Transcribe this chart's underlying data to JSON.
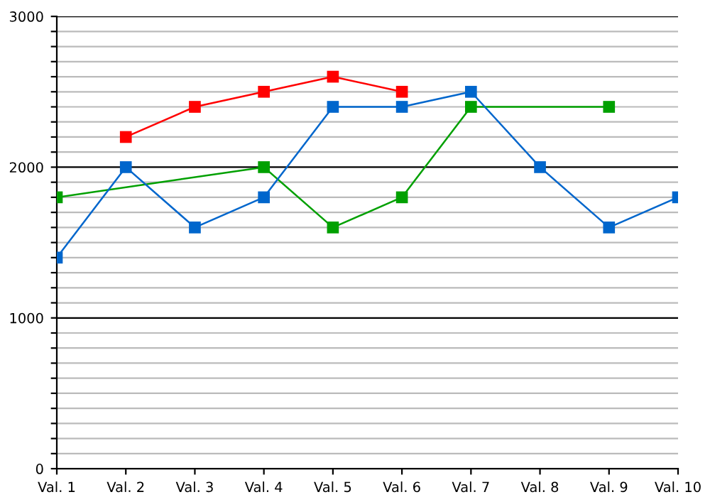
{
  "chart_data": {
    "type": "line",
    "categories": [
      "Val. 1",
      "Val. 2",
      "Val. 3",
      "Val. 4",
      "Val. 5",
      "Val. 6",
      "Val. 7",
      "Val. 8",
      "Val. 9",
      "Val. 10"
    ],
    "series": [
      {
        "color": "#ff0000",
        "values": [
          null,
          2200,
          2400,
          2500,
          2600,
          2500,
          null,
          null,
          null,
          null
        ]
      },
      {
        "color": "#00a000",
        "values": [
          1800,
          null,
          null,
          2000,
          1600,
          1800,
          2400,
          null,
          2400,
          null
        ]
      },
      {
        "color": "#0066cc",
        "values": [
          1400,
          2000,
          1600,
          1800,
          2400,
          2400,
          2500,
          2000,
          1600,
          1800
        ]
      }
    ],
    "ylim": [
      0,
      3000
    ],
    "yticks": [
      0,
      {
        "value": 100,
        "label": null
      },
      {
        "value": 200,
        "label": null
      },
      {
        "value": 300,
        "label": null
      },
      {
        "value": 400,
        "label": null
      },
      {
        "value": 500,
        "label": null
      },
      {
        "value": 600,
        "label": null
      },
      {
        "value": 700,
        "label": null
      },
      {
        "value": 800,
        "label": null
      },
      {
        "value": 900,
        "label": null
      },
      1000,
      {
        "value": 1100,
        "label": null
      },
      {
        "value": 1200,
        "label": null
      },
      {
        "value": 1300,
        "label": null
      },
      {
        "value": 1400,
        "label": null
      },
      {
        "value": 1500,
        "label": null
      },
      {
        "value": 1600,
        "label": null
      },
      {
        "value": 1700,
        "label": null
      },
      {
        "value": 1800,
        "label": null
      },
      {
        "value": 1900,
        "label": null
      },
      2000,
      {
        "value": 2100,
        "label": null
      },
      {
        "value": 2200,
        "label": null
      },
      {
        "value": 2300,
        "label": null
      },
      {
        "value": 2400,
        "label": null
      },
      {
        "value": 2500,
        "label": null
      },
      {
        "value": 2600,
        "label": null
      },
      {
        "value": 2700,
        "label": null
      },
      {
        "value": 2800,
        "label": null
      },
      {
        "value": 2900,
        "label": null
      },
      3000
    ],
    "grid": "y",
    "marker": "square",
    "line_style": "solid",
    "legend": false
  }
}
